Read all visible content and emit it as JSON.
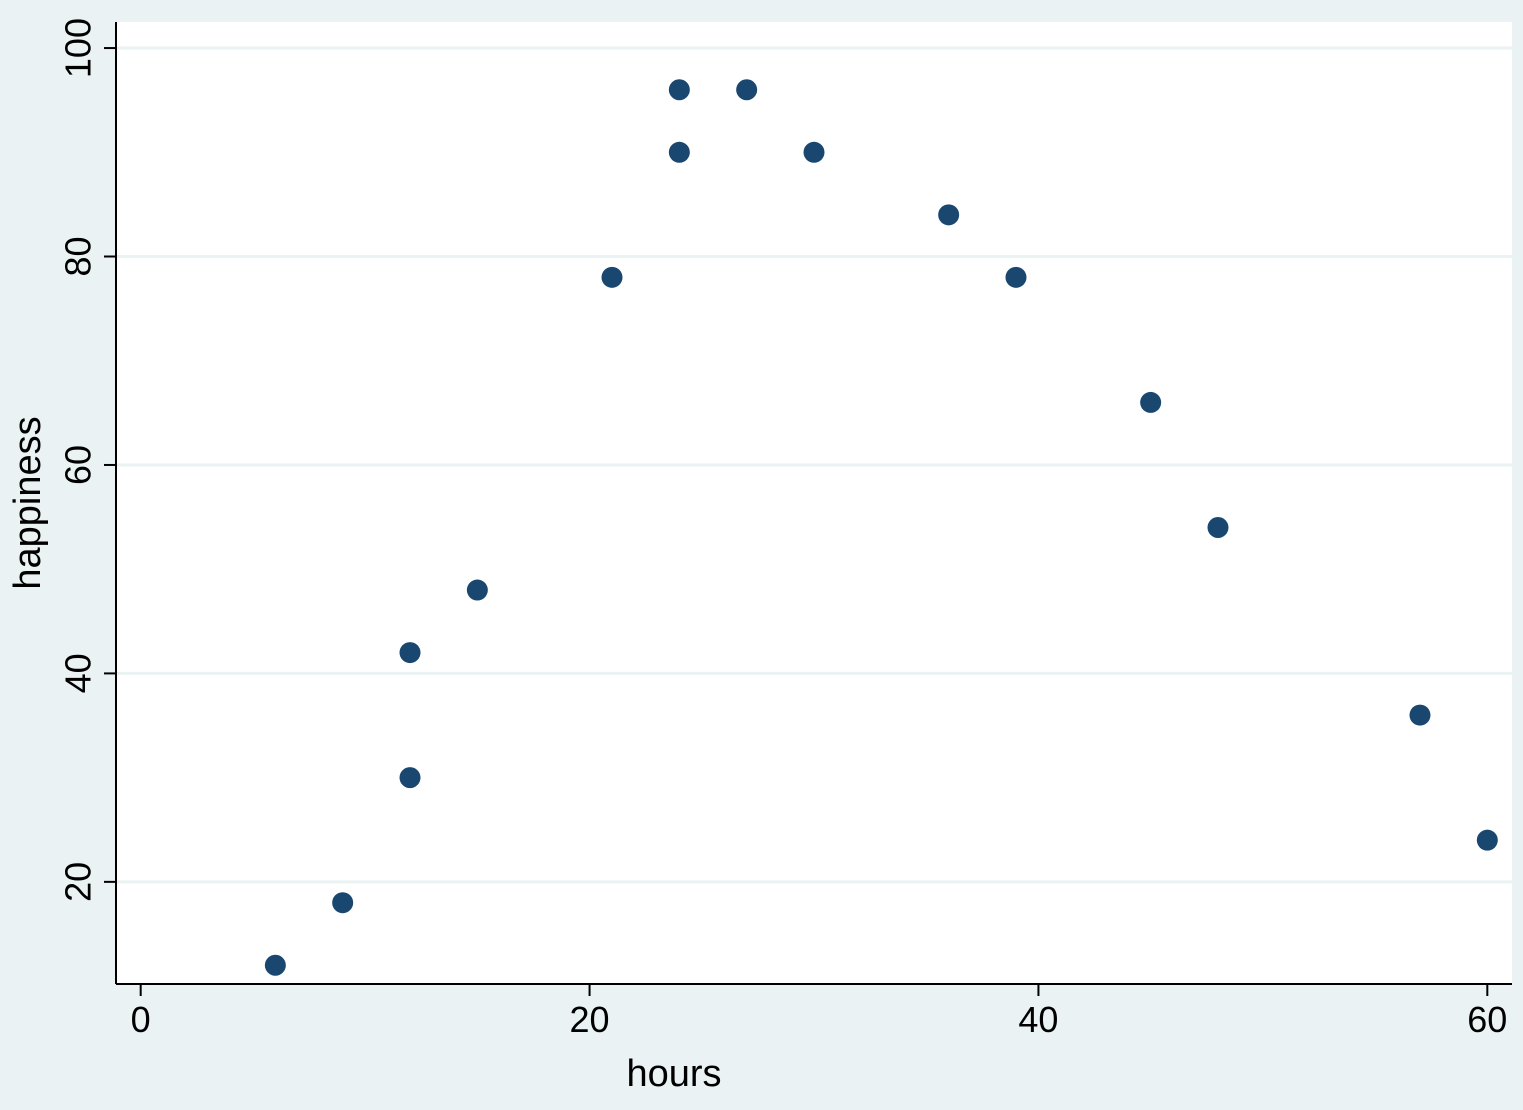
{
  "chart_data": {
    "type": "scatter",
    "xlabel": "hours",
    "ylabel": "happiness",
    "xlim": [
      -1.1,
      61.1
    ],
    "ylim": [
      10.2,
      102.5
    ],
    "xticks": [
      0,
      20,
      40,
      60
    ],
    "yticks": [
      20,
      40,
      60,
      80,
      100
    ],
    "grid": "horizontal",
    "series": [
      {
        "x": [
          6,
          9,
          12,
          12,
          15,
          21,
          24,
          24,
          27,
          30,
          36,
          39,
          45,
          48,
          57,
          60
        ],
        "y": [
          12,
          18,
          30,
          42,
          48,
          78,
          90,
          96,
          96,
          90,
          84,
          78,
          66,
          54,
          36,
          24
        ]
      }
    ],
    "colors": {
      "marker": "#1a476f",
      "plot_background": "#ffffff",
      "page_background": "#eaf2f3",
      "grid": "#eaf2f3"
    }
  }
}
